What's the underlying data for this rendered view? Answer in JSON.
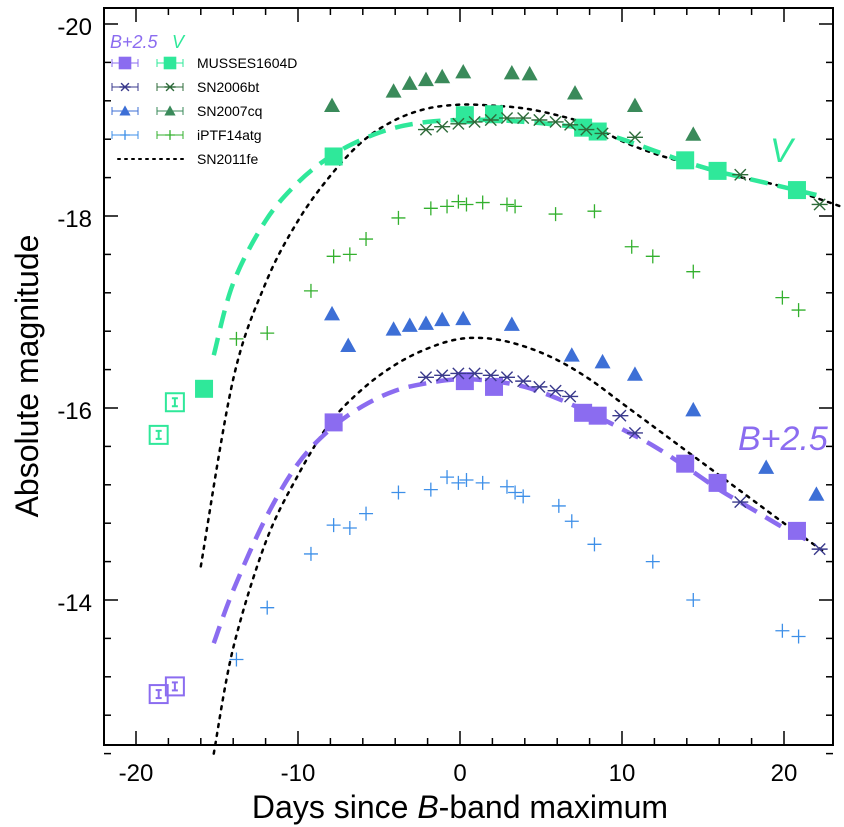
{
  "chart_data": {
    "type": "scatter",
    "xlabel": "Days since B-band maximum",
    "xlabel_parts": [
      "Days since ",
      "B",
      "-band maximum"
    ],
    "ylabel": "Absolute magnitude",
    "xlim": [
      -22,
      23.5
    ],
    "ylim": [
      -12.3,
      -20.1
    ],
    "y_inverted": true,
    "x_ticks": [
      -20,
      -10,
      0,
      10,
      20
    ],
    "x_tick_labels": [
      "-20",
      "-10",
      "0",
      "10",
      "20"
    ],
    "y_ticks": [
      -20,
      -18,
      -16,
      -14
    ],
    "y_tick_labels": [
      "-20",
      "-18",
      "-16",
      "-14"
    ],
    "grid": false,
    "legend_location": "top-left",
    "legend": {
      "header_b": "B+2.5",
      "header_v": "V",
      "entries": [
        "MUSSES1604D",
        "SN2006bt",
        "SN2007cq",
        "iPTF14atg",
        "SN2011fe"
      ]
    },
    "band_labels": {
      "V": "V",
      "B": "B+2.5"
    },
    "colors": {
      "musses_b": "#8b6cf0",
      "musses_v": "#2fe89a",
      "sn2006bt_b": "#3a3a8c",
      "sn2006bt_v": "#2e6b3a",
      "sn2007cq_b": "#3d6fd6",
      "sn2007cq_v": "#3a8a5a",
      "iptf_b": "#3d8fe8",
      "iptf_v": "#33b02e",
      "sn2011fe": "#000000"
    },
    "series": [
      {
        "name": "MUSSES1604D",
        "band": "B+2.5",
        "marker": "square",
        "x": [
          -7.8,
          0.3,
          2.1,
          7.6,
          8.5,
          13.9,
          15.9,
          20.8
        ],
        "y": [
          -15.85,
          -16.28,
          -16.22,
          -15.95,
          -15.92,
          -15.42,
          -15.22,
          -14.72
        ]
      },
      {
        "name": "MUSSES1604D",
        "band": "V",
        "marker": "square",
        "x": [
          -15.8,
          -7.8,
          0.3,
          2.1,
          7.6,
          8.5,
          13.9,
          15.9,
          20.8
        ],
        "y": [
          -16.2,
          -18.62,
          -19.05,
          -19.06,
          -18.92,
          -18.88,
          -18.58,
          -18.47,
          -18.27
        ]
      },
      {
        "name": "MUSSES1604D",
        "band": "B+2.5",
        "marker": "open-square",
        "limit": true,
        "x": [
          -18.6,
          -17.6
        ],
        "y": [
          -13.02,
          -13.1
        ]
      },
      {
        "name": "MUSSES1604D",
        "band": "V",
        "marker": "open-square",
        "limit": true,
        "x": [
          -18.6,
          -17.6
        ],
        "y": [
          -15.72,
          -16.06
        ]
      },
      {
        "name": "SN2006bt",
        "band": "B+2.5",
        "marker": "asterisk",
        "x": [
          -2.1,
          -1.1,
          -0.1,
          0.9,
          1.9,
          2.9,
          3.9,
          4.9,
          5.9,
          6.8,
          9.9,
          10.8,
          17.3,
          22.2
        ],
        "y": [
          -16.32,
          -16.34,
          -16.36,
          -16.36,
          -16.34,
          -16.32,
          -16.28,
          -16.22,
          -16.18,
          -16.12,
          -15.92,
          -15.74,
          -15.02,
          -14.53
        ]
      },
      {
        "name": "SN2006bt",
        "band": "V",
        "marker": "asterisk",
        "x": [
          -2.1,
          -1.1,
          -0.1,
          0.9,
          1.9,
          2.9,
          3.9,
          4.9,
          5.9,
          6.8,
          7.8,
          8.8,
          10.8,
          17.3,
          22.2
        ],
        "y": [
          -18.9,
          -18.93,
          -18.96,
          -18.98,
          -19.0,
          -19.02,
          -19.02,
          -19.0,
          -18.98,
          -18.95,
          -18.9,
          -18.86,
          -18.82,
          -18.43,
          -18.12
        ]
      },
      {
        "name": "SN2007cq",
        "band": "B+2.5",
        "marker": "triangle",
        "x": [
          -7.9,
          -6.9,
          -4.1,
          -3.1,
          -2.1,
          -1.1,
          0.2,
          3.2,
          6.9,
          8.8,
          10.8,
          14.4,
          18.9,
          22.0
        ],
        "y": [
          -16.98,
          -16.65,
          -16.82,
          -16.86,
          -16.88,
          -16.92,
          -16.93,
          -16.87,
          -16.55,
          -16.48,
          -16.35,
          -15.98,
          -15.38,
          -15.1
        ]
      },
      {
        "name": "SN2007cq",
        "band": "V",
        "marker": "triangle",
        "x": [
          -7.9,
          -4.1,
          -3.1,
          -2.1,
          -1.1,
          0.2,
          3.2,
          4.3,
          7.1,
          10.8,
          14.4
        ],
        "y": [
          -19.15,
          -19.3,
          -19.38,
          -19.42,
          -19.45,
          -19.5,
          -19.49,
          -19.48,
          -19.28,
          -19.15,
          -18.85
        ]
      },
      {
        "name": "iPTF14atg",
        "band": "B+2.5",
        "marker": "cross",
        "x": [
          -13.8,
          -11.9,
          -9.2,
          -7.8,
          -6.8,
          -5.8,
          -3.8,
          -1.8,
          -0.8,
          -0.1,
          0.4,
          1.4,
          2.9,
          3.4,
          3.9,
          6.1,
          6.9,
          8.3,
          11.9,
          14.4,
          19.9,
          20.9
        ],
        "y": [
          -13.38,
          -13.92,
          -14.48,
          -14.78,
          -14.75,
          -14.9,
          -15.12,
          -15.15,
          -15.28,
          -15.22,
          -15.25,
          -15.22,
          -15.18,
          -15.12,
          -15.08,
          -14.98,
          -14.82,
          -14.58,
          -14.4,
          -14.0,
          -13.68,
          -13.62
        ]
      },
      {
        "name": "iPTF14atg",
        "band": "V",
        "marker": "cross",
        "x": [
          -13.8,
          -11.9,
          -9.2,
          -7.8,
          -6.8,
          -5.8,
          -3.8,
          -1.8,
          -0.8,
          -0.1,
          0.4,
          1.4,
          2.9,
          3.4,
          5.9,
          8.3,
          10.6,
          11.9,
          14.4,
          19.9,
          20.9
        ],
        "y": [
          -16.72,
          -16.78,
          -17.22,
          -17.58,
          -17.6,
          -17.76,
          -17.98,
          -18.08,
          -18.1,
          -18.15,
          -18.12,
          -18.14,
          -18.12,
          -18.1,
          -18.02,
          -18.05,
          -17.68,
          -17.58,
          -17.42,
          -17.15,
          -17.02
        ]
      },
      {
        "name": "SN2011fe",
        "band": "B+2.5",
        "marker": "dotted-line",
        "x": [
          -15.2,
          -14.0,
          -12.0,
          -10.0,
          -8.0,
          -6.0,
          -4.0,
          -2.0,
          0.0,
          2.0,
          4.0,
          6.0,
          8.0,
          10.0,
          12.0,
          14.0,
          16.0,
          18.0,
          20.0,
          22.5
        ],
        "y": [
          -12.4,
          -13.5,
          -14.6,
          -15.3,
          -15.85,
          -16.2,
          -16.45,
          -16.62,
          -16.72,
          -16.72,
          -16.64,
          -16.5,
          -16.3,
          -16.05,
          -15.8,
          -15.55,
          -15.3,
          -15.05,
          -14.8,
          -14.5
        ]
      },
      {
        "name": "SN2011fe",
        "band": "V",
        "marker": "dotted-line",
        "x": [
          -16.0,
          -14.0,
          -12.0,
          -10.0,
          -8.0,
          -6.0,
          -4.0,
          -2.0,
          0.0,
          2.0,
          4.0,
          6.0,
          8.0,
          10.0,
          12.0,
          14.0,
          16.0,
          18.0,
          20.0,
          23.5
        ],
        "y": [
          -14.35,
          -16.3,
          -17.3,
          -17.95,
          -18.42,
          -18.78,
          -19.0,
          -19.12,
          -19.16,
          -19.15,
          -19.12,
          -19.05,
          -18.95,
          -18.78,
          -18.65,
          -18.55,
          -18.45,
          -18.38,
          -18.3,
          -18.1
        ]
      },
      {
        "name": "MUSSES1604D",
        "band": "B+2.5",
        "marker": "dashed-line",
        "x": [
          -15.2,
          -14.0,
          -12.0,
          -10.0,
          -8.0,
          -6.0,
          -4.0,
          -2.0,
          0.0,
          2.0,
          4.0,
          6.0,
          8.0,
          10.0,
          12.0,
          14.0,
          16.0,
          18.0,
          20.0,
          21.5
        ],
        "y": [
          -13.55,
          -14.1,
          -14.85,
          -15.42,
          -15.78,
          -16.02,
          -16.18,
          -16.26,
          -16.3,
          -16.28,
          -16.22,
          -16.1,
          -15.95,
          -15.78,
          -15.6,
          -15.38,
          -15.15,
          -14.95,
          -14.75,
          -14.62
        ]
      },
      {
        "name": "MUSSES1604D",
        "band": "V",
        "marker": "dashed-line",
        "x": [
          -15.2,
          -14.0,
          -12.0,
          -10.0,
          -8.0,
          -6.0,
          -4.0,
          -2.0,
          0.0,
          2.0,
          4.0,
          6.0,
          8.0,
          10.0,
          12.0,
          14.0,
          16.0,
          18.0,
          20.0,
          22.0
        ],
        "y": [
          -16.55,
          -17.3,
          -17.95,
          -18.35,
          -18.62,
          -18.8,
          -18.92,
          -18.98,
          -19.0,
          -19.0,
          -18.98,
          -18.95,
          -18.9,
          -18.8,
          -18.68,
          -18.56,
          -18.46,
          -18.38,
          -18.3,
          -18.22
        ]
      }
    ]
  }
}
